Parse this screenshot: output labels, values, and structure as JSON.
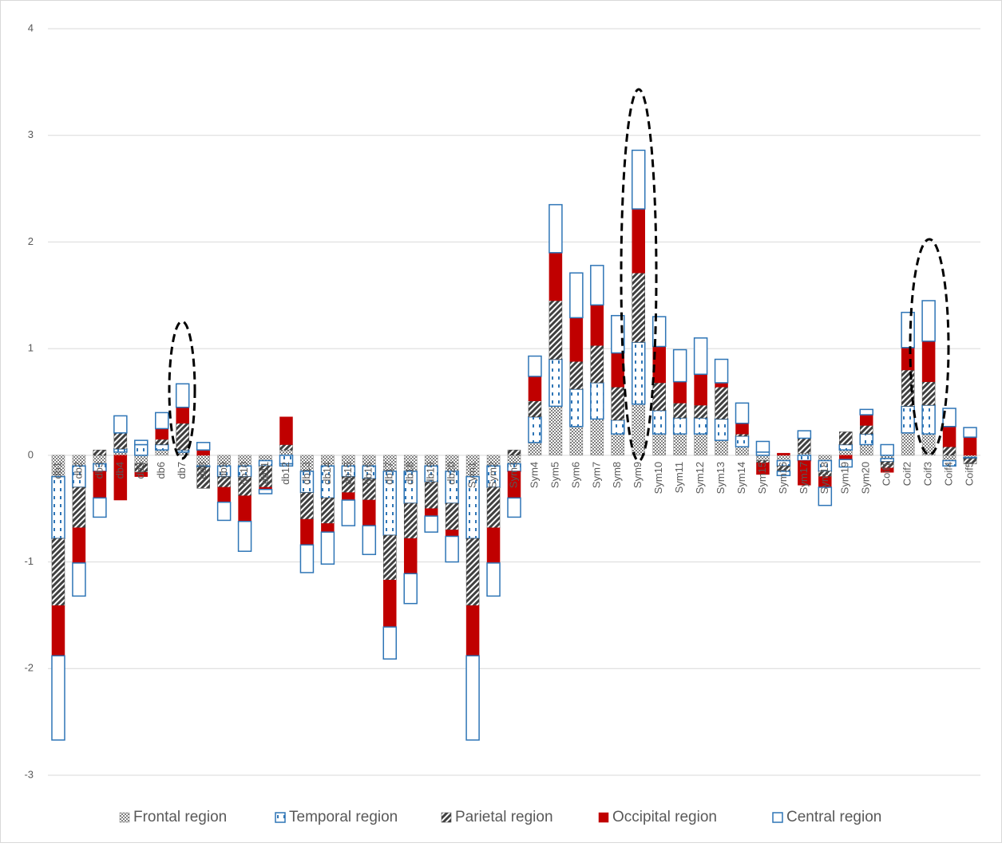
{
  "chart_data": {
    "type": "bar",
    "stacked": true,
    "categories": [
      "db1",
      "db2",
      "db3",
      "db4",
      "db5",
      "db6",
      "db7",
      "db8",
      "db9",
      "db10",
      "db11",
      "db12",
      "db13",
      "db14",
      "db15",
      "db16",
      "db17",
      "db18",
      "db19",
      "db20",
      "Sym1",
      "Sym2",
      "Sym3",
      "Sym4",
      "Sym5",
      "Sym6",
      "Sym7",
      "Sym8",
      "Sym9",
      "Sym10",
      "Sym11",
      "Sym12",
      "Sym13",
      "Sym14",
      "Sym15",
      "Sym16",
      "Sym17",
      "Sym18",
      "Sym19",
      "Sym20",
      "Coif1",
      "Coif2",
      "Coif3",
      "Coif4",
      "Coif5"
    ],
    "series": [
      {
        "name": "Frontal region",
        "color": "#7f7f7f",
        "pattern": "checker",
        "values": [
          -0.2,
          -0.1,
          -0.08,
          0.03,
          -0.08,
          0.05,
          0.03,
          -0.1,
          -0.1,
          -0.1,
          -0.05,
          0.05,
          -0.15,
          -0.1,
          -0.1,
          -0.1,
          -0.15,
          -0.15,
          -0.1,
          -0.15,
          -0.2,
          -0.1,
          -0.08,
          0.12,
          0.46,
          0.27,
          0.34,
          0.2,
          0.48,
          0.2,
          0.2,
          0.2,
          0.14,
          0.08,
          -0.05,
          -0.05,
          0.02,
          -0.05,
          0.05,
          0.1,
          -0.03,
          0.21,
          0.2,
          -0.05,
          -0.02
        ]
      },
      {
        "name": "Temporal region",
        "color": "#2e75b6",
        "pattern": "dashed",
        "values": [
          -0.58,
          -0.2,
          -0.07,
          0.03,
          0.1,
          0.05,
          0.02,
          -0.01,
          -0.1,
          -0.1,
          -0.05,
          -0.08,
          -0.2,
          -0.3,
          -0.1,
          -0.12,
          -0.6,
          -0.3,
          -0.15,
          -0.3,
          -0.58,
          -0.2,
          -0.07,
          0.24,
          0.44,
          0.35,
          0.34,
          0.13,
          0.58,
          0.22,
          0.15,
          0.15,
          0.2,
          0.1,
          0.03,
          -0.05,
          -0.05,
          -0.1,
          0.05,
          0.1,
          -0.03,
          0.25,
          0.27,
          -0.05,
          -0.01
        ]
      },
      {
        "name": "Parietal region",
        "color": "#404040",
        "pattern": "hatch",
        "values": [
          -0.63,
          -0.38,
          0.05,
          0.15,
          -0.08,
          0.05,
          0.25,
          -0.2,
          -0.1,
          -0.18,
          -0.2,
          0.05,
          -0.25,
          -0.24,
          -0.15,
          -0.2,
          -0.42,
          -0.33,
          -0.25,
          -0.25,
          -0.63,
          -0.38,
          0.05,
          0.15,
          0.55,
          0.26,
          0.35,
          0.31,
          0.65,
          0.26,
          0.14,
          0.12,
          0.3,
          0.02,
          -0.02,
          -0.05,
          0.14,
          -0.05,
          0.12,
          0.08,
          -0.06,
          0.34,
          0.22,
          0.08,
          -0.05
        ]
      },
      {
        "name": "Occipital region",
        "color": "#c00000",
        "pattern": "solid",
        "values": [
          -0.47,
          -0.33,
          -0.25,
          -0.42,
          -0.04,
          0.1,
          0.15,
          0.05,
          -0.14,
          -0.24,
          -0.02,
          0.26,
          -0.24,
          -0.08,
          -0.07,
          -0.24,
          -0.44,
          -0.33,
          -0.07,
          -0.06,
          -0.47,
          -0.33,
          -0.25,
          0.23,
          0.45,
          0.41,
          0.38,
          0.32,
          0.6,
          0.34,
          0.2,
          0.29,
          0.04,
          0.1,
          -0.11,
          0.02,
          -0.23,
          -0.1,
          -0.04,
          0.1,
          -0.04,
          0.21,
          0.38,
          0.19,
          0.17
        ]
      },
      {
        "name": "Central region",
        "color": "#2e75b6",
        "pattern": "outline",
        "values": [
          -0.79,
          -0.31,
          -0.18,
          0.16,
          0.04,
          0.15,
          0.22,
          0.07,
          -0.17,
          -0.28,
          -0.04,
          -0.02,
          -0.26,
          -0.3,
          -0.24,
          -0.27,
          -0.3,
          -0.28,
          -0.15,
          -0.24,
          -0.79,
          -0.31,
          -0.18,
          0.19,
          0.45,
          0.42,
          0.37,
          0.35,
          0.55,
          0.28,
          0.3,
          0.34,
          0.22,
          0.19,
          0.1,
          -0.04,
          0.07,
          -0.17,
          -0.07,
          0.05,
          0.1,
          0.33,
          0.38,
          0.17,
          0.09
        ]
      }
    ],
    "ylim": [
      -3,
      4
    ],
    "yticks": [
      -3,
      -2,
      -1,
      0,
      1,
      2,
      3,
      4
    ],
    "grid": true,
    "legend": "bottom"
  }
}
